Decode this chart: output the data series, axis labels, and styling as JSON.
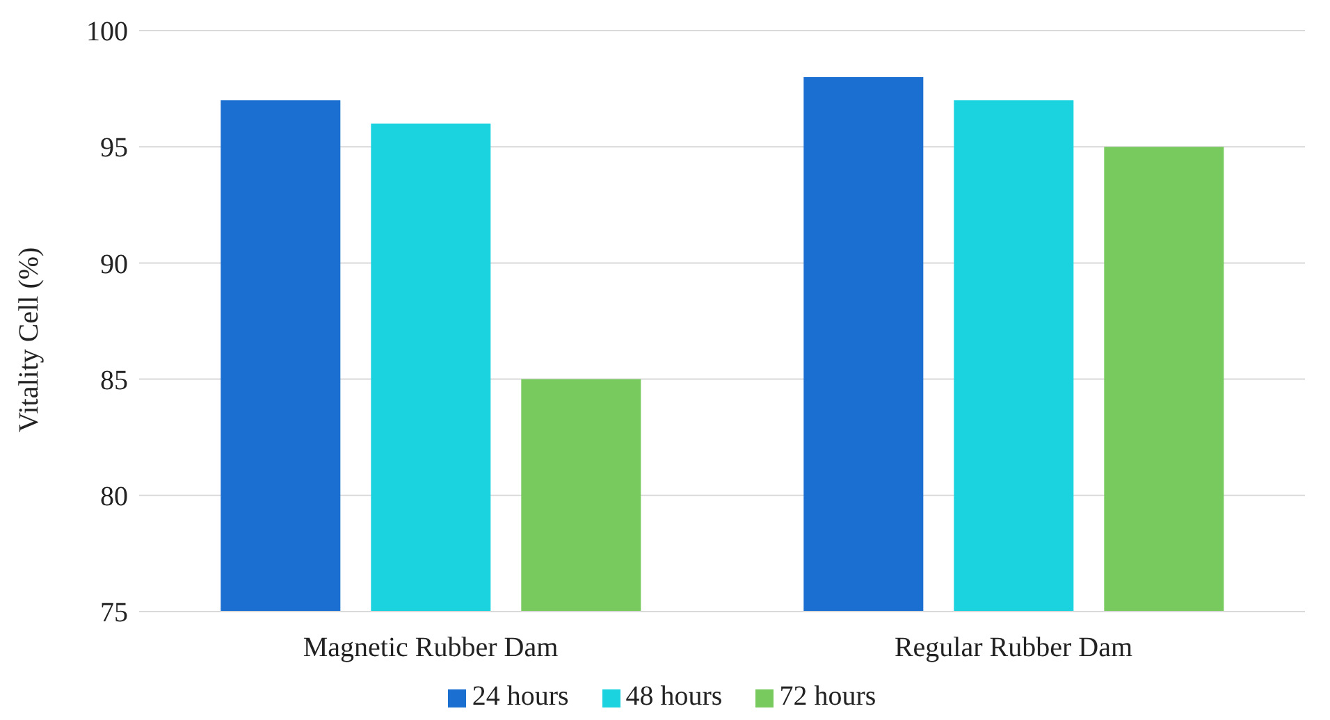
{
  "chart_data": {
    "type": "bar",
    "ylabel": "Vitality Cell (%)",
    "categories": [
      "Magnetic Rubber Dam",
      "Regular Rubber Dam"
    ],
    "series": [
      {
        "name": "24 hours",
        "color": "#1a6fd0",
        "values": [
          97,
          98
        ]
      },
      {
        "name": "48 hours",
        "color": "#1ad3df",
        "values": [
          96,
          97
        ]
      },
      {
        "name": "72 hours",
        "color": "#78c95e",
        "values": [
          85,
          95
        ]
      }
    ],
    "ylim": [
      75,
      100
    ],
    "yticks": [
      75,
      80,
      85,
      90,
      95,
      100
    ],
    "grid": "y",
    "legend": "bottom"
  }
}
